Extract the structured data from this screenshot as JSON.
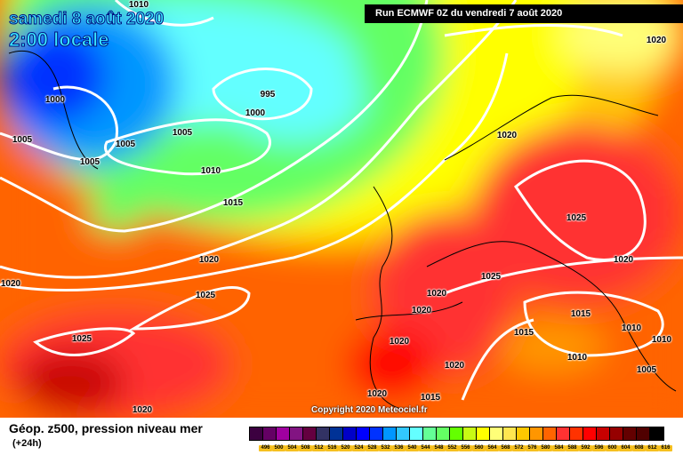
{
  "header": {
    "date": "samedi 8 août 2020",
    "time": "2:00 locale",
    "run": "Run ECMWF 0Z du vendredi 7 août 2020"
  },
  "copyright": "Copyright 2020 Meteociel.fr",
  "legend": {
    "title": "Géop. z500, pression niveau mer",
    "subtitle": "(+24h)",
    "ticks": [
      "496",
      "500",
      "504",
      "508",
      "512",
      "516",
      "520",
      "524",
      "528",
      "532",
      "536",
      "540",
      "544",
      "548",
      "552",
      "556",
      "560",
      "564",
      "568",
      "572",
      "576",
      "580",
      "584",
      "588",
      "592",
      "596",
      "600",
      "604",
      "608",
      "612",
      "616"
    ],
    "colors": [
      "#3c0040",
      "#640064",
      "#a000a0",
      "#821482",
      "#640040",
      "#323264",
      "#003296",
      "#0000c8",
      "#0000ff",
      "#0032ff",
      "#0096ff",
      "#32c8ff",
      "#64ffff",
      "#64ff96",
      "#64ff64",
      "#64ff00",
      "#c8fa14",
      "#ffff00",
      "#ffff78",
      "#ffe650",
      "#ffc800",
      "#ff9600",
      "#ff6400",
      "#ff3232",
      "#ff3200",
      "#ff0000",
      "#c80000",
      "#960000",
      "#640000",
      "#500000",
      "#000000"
    ]
  },
  "isobars": [
    "1010",
    "1020",
    "1000",
    "995",
    "1000",
    "1005",
    "1005",
    "1005",
    "1005",
    "1020",
    "1010",
    "1015",
    "1025",
    "1020",
    "1020",
    "1020",
    "1025",
    "1025",
    "1020",
    "1020",
    "1015",
    "1025",
    "1020",
    "1015",
    "1010",
    "1010",
    "1010",
    "1020",
    "1005",
    "1020",
    "1015",
    "1020"
  ]
}
